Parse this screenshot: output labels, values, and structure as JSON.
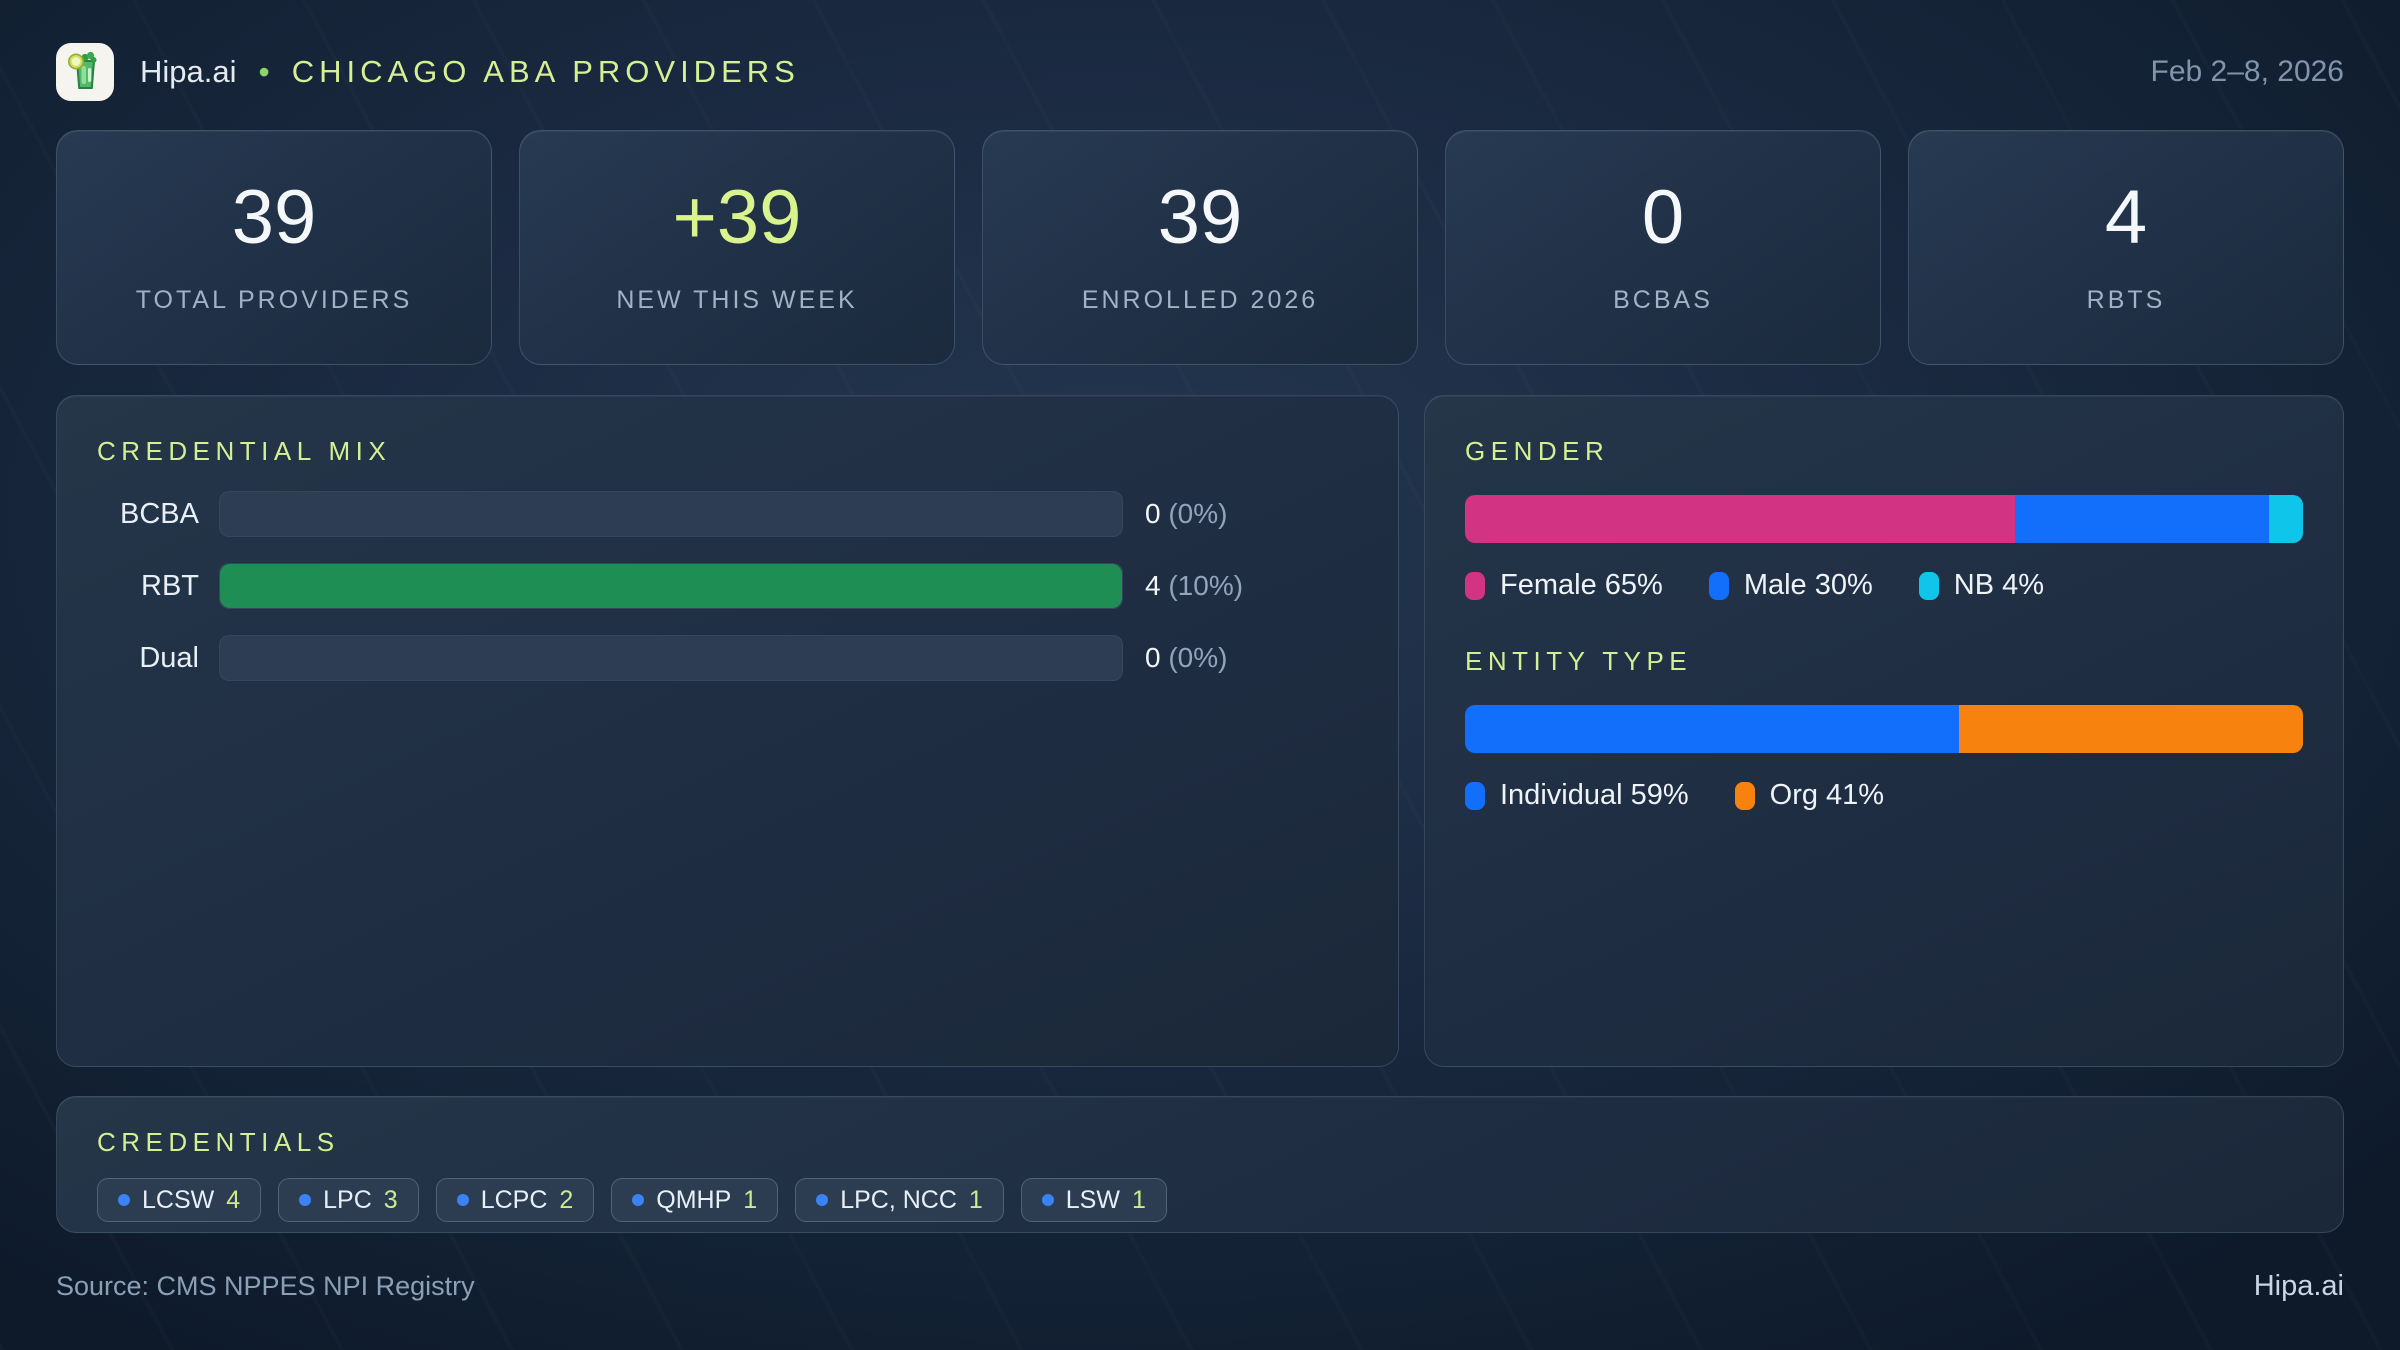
{
  "header": {
    "brand": "Hipa.ai",
    "separator": "•",
    "title": "CHICAGO ABA PROVIDERS",
    "date_range": "Feb 2–8, 2026",
    "logo_icon": "mojito-icon"
  },
  "stats": [
    {
      "value": "39",
      "label": "TOTAL PROVIDERS",
      "accent": false
    },
    {
      "value": "+39",
      "label": "NEW THIS WEEK",
      "accent": true
    },
    {
      "value": "39",
      "label": "ENROLLED 2026",
      "accent": false
    },
    {
      "value": "0",
      "label": "BCBAS",
      "accent": false
    },
    {
      "value": "4",
      "label": "RBTS",
      "accent": false
    }
  ],
  "credential_mix": {
    "title": "CREDENTIAL MIX",
    "rows": [
      {
        "label": "BCBA",
        "count": "0",
        "pct_text": "(0%)",
        "fill_pct": 0,
        "color": "#1e8e55"
      },
      {
        "label": "RBT",
        "count": "4",
        "pct_text": "(10%)",
        "fill_pct": 100,
        "color": "#1e8e55"
      },
      {
        "label": "Dual",
        "count": "0",
        "pct_text": "(0%)",
        "fill_pct": 0,
        "color": "#1e8e55"
      }
    ]
  },
  "gender": {
    "title": "GENDER",
    "segments": [
      {
        "label": "Female",
        "pct": 65,
        "text": "Female 65%",
        "color": "#d23383"
      },
      {
        "label": "Male",
        "pct": 30,
        "text": "Male 30%",
        "color": "#126ffb"
      },
      {
        "label": "NB",
        "pct": 4,
        "text": "NB 4%",
        "color": "#0fc6ea"
      }
    ]
  },
  "entity_type": {
    "title": "ENTITY TYPE",
    "segments": [
      {
        "label": "Individual",
        "pct": 59,
        "text": "Individual 59%",
        "color": "#126ffb"
      },
      {
        "label": "Org",
        "pct": 41,
        "text": "Org 41%",
        "color": "#f8820e"
      }
    ]
  },
  "credentials": {
    "title": "CREDENTIALS",
    "chips": [
      {
        "label": "LCSW",
        "count": "4"
      },
      {
        "label": "LPC",
        "count": "3"
      },
      {
        "label": "LCPC",
        "count": "2"
      },
      {
        "label": "QMHP",
        "count": "1"
      },
      {
        "label": "LPC, NCC",
        "count": "1"
      },
      {
        "label": "LSW",
        "count": "1"
      }
    ]
  },
  "footer": {
    "source": "Source: CMS NPPES NPI Registry",
    "brand": "Hipa.ai"
  },
  "colors": {
    "accent_lime": "#d9f48c",
    "heading_green": "#d5ef94",
    "bar_green": "#1e8e55",
    "female_pink": "#d23383",
    "male_blue": "#126ffb",
    "nb_cyan": "#0fc6ea",
    "org_orange": "#f8820e",
    "chip_dot_blue": "#3b82f6"
  },
  "chart_data": [
    {
      "type": "bar",
      "title": "CREDENTIAL MIX",
      "categories": [
        "BCBA",
        "RBT",
        "Dual"
      ],
      "values": [
        0,
        4,
        0
      ],
      "labels": [
        "0 (0%)",
        "4 (10%)",
        "0 (0%)"
      ],
      "orientation": "horizontal",
      "xlabel": "",
      "ylabel": "",
      "grid": false,
      "note": "bars scaled to max value; RBT (4) renders full width"
    },
    {
      "type": "bar",
      "title": "GENDER",
      "subtype": "stacked-horizontal",
      "series": [
        {
          "name": "Female",
          "values": [
            65
          ]
        },
        {
          "name": "Male",
          "values": [
            30
          ]
        },
        {
          "name": "NB",
          "values": [
            4
          ]
        }
      ],
      "legend_position": "bottom"
    },
    {
      "type": "bar",
      "title": "ENTITY TYPE",
      "subtype": "stacked-horizontal",
      "series": [
        {
          "name": "Individual",
          "values": [
            59
          ]
        },
        {
          "name": "Org",
          "values": [
            41
          ]
        }
      ],
      "legend_position": "bottom"
    }
  ]
}
